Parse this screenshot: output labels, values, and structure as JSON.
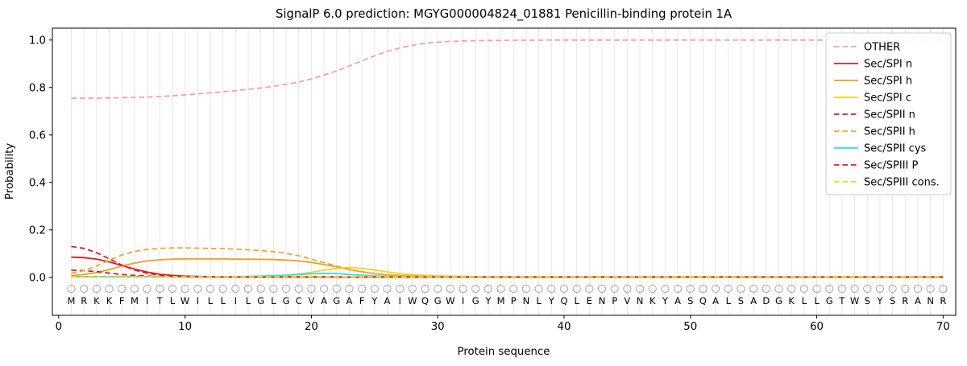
{
  "chart_data": {
    "type": "line",
    "title": "SignalP 6.0 prediction: MGYG000004824_01881 Penicillin-binding protein 1A",
    "xlabel": "Protein sequence",
    "ylabel": "Probability",
    "xticks": [
      0,
      10,
      20,
      30,
      40,
      50,
      60,
      70
    ],
    "yticks": [
      0.0,
      0.2,
      0.4,
      0.6,
      0.8,
      1.0
    ],
    "xlim": [
      -0.5,
      71
    ],
    "ylim": [
      -0.16,
      1.05
    ],
    "grid": "vertical-per-residue",
    "legend_position": "upper right",
    "sequence": "MRKKFMITLWILLILGLGCVAGAFYAIWQGWIGYMPNLYQLENPVNKYASQALSADGKLLGTWSYSRANR",
    "colors": {
      "other": "#ff9e9e",
      "red": "#e41a1c",
      "orange": "#f3a612",
      "yellow": "#f7d117",
      "cyan": "#2fe0e3",
      "grid": "#e7e7e7",
      "marker": "#a6a6a6"
    },
    "series": [
      {
        "name": "OTHER",
        "color": "#ff9e9e",
        "dash": true,
        "values": [
          0.755,
          0.755,
          0.755,
          0.756,
          0.757,
          0.758,
          0.76,
          0.762,
          0.765,
          0.769,
          0.773,
          0.777,
          0.782,
          0.787,
          0.792,
          0.798,
          0.805,
          0.813,
          0.823,
          0.836,
          0.852,
          0.87,
          0.89,
          0.912,
          0.933,
          0.952,
          0.967,
          0.978,
          0.986,
          0.991,
          0.994,
          0.996,
          0.997,
          0.998,
          0.998,
          0.999,
          0.999,
          0.999,
          1.0,
          1.0,
          1.0,
          1.0,
          1.0,
          1.0,
          1.0,
          1.0,
          1.0,
          1.0,
          1.0,
          1.0,
          1.0,
          1.0,
          1.0,
          1.0,
          1.0,
          1.0,
          1.0,
          1.0,
          1.0,
          1.0,
          1.0,
          1.0,
          1.0,
          1.0,
          1.0,
          1.0,
          1.0,
          1.0,
          1.0,
          1.0
        ]
      },
      {
        "name": "Sec/SPI n",
        "color": "#e41a1c",
        "dash": false,
        "values": [
          0.085,
          0.083,
          0.077,
          0.065,
          0.05,
          0.035,
          0.022,
          0.013,
          0.008,
          0.005,
          0.004,
          0.003,
          0.003,
          0.002,
          0.002,
          0.002,
          0.002,
          0.002,
          0.002,
          0.002,
          0.002,
          0.002,
          0.001,
          0.001,
          0.001,
          0.001,
          0.001,
          0.001,
          0.001,
          0.001,
          0.001,
          0.001,
          0.001,
          0.001,
          0.001,
          0.001,
          0.001,
          0.001,
          0.001,
          0.001,
          0.001,
          0.001,
          0.001,
          0.001,
          0.001,
          0.001,
          0.001,
          0.001,
          0.001,
          0.001,
          0.001,
          0.001,
          0.001,
          0.001,
          0.001,
          0.001,
          0.001,
          0.001,
          0.001,
          0.001,
          0.001,
          0.001,
          0.001,
          0.001,
          0.001,
          0.001,
          0.001,
          0.001,
          0.001,
          0.001
        ]
      },
      {
        "name": "Sec/SPI h",
        "color": "#eda020",
        "dash": false,
        "values": [
          0.008,
          0.012,
          0.02,
          0.033,
          0.048,
          0.06,
          0.069,
          0.074,
          0.077,
          0.078,
          0.078,
          0.078,
          0.078,
          0.077,
          0.077,
          0.076,
          0.075,
          0.073,
          0.069,
          0.063,
          0.054,
          0.044,
          0.033,
          0.023,
          0.015,
          0.01,
          0.007,
          0.005,
          0.004,
          0.003,
          0.003,
          0.003,
          0.002,
          0.002,
          0.002,
          0.002,
          0.002,
          0.002,
          0.002,
          0.002,
          0.002,
          0.002,
          0.002,
          0.002,
          0.002,
          0.002,
          0.002,
          0.002,
          0.002,
          0.002,
          0.002,
          0.002,
          0.002,
          0.002,
          0.002,
          0.002,
          0.002,
          0.002,
          0.002,
          0.002,
          0.002,
          0.002,
          0.002,
          0.002,
          0.002,
          0.002,
          0.002,
          0.002,
          0.002,
          0.002
        ]
      },
      {
        "name": "Sec/SPI c",
        "color": "#f7d117",
        "dash": false,
        "values": [
          0.002,
          0.002,
          0.002,
          0.002,
          0.002,
          0.002,
          0.002,
          0.002,
          0.002,
          0.002,
          0.002,
          0.002,
          0.002,
          0.003,
          0.003,
          0.004,
          0.006,
          0.009,
          0.014,
          0.021,
          0.03,
          0.038,
          0.041,
          0.038,
          0.031,
          0.023,
          0.016,
          0.011,
          0.008,
          0.006,
          0.005,
          0.004,
          0.003,
          0.003,
          0.003,
          0.003,
          0.003,
          0.003,
          0.003,
          0.003,
          0.003,
          0.003,
          0.003,
          0.003,
          0.003,
          0.003,
          0.003,
          0.003,
          0.003,
          0.003,
          0.003,
          0.003,
          0.003,
          0.003,
          0.003,
          0.003,
          0.003,
          0.003,
          0.003,
          0.003,
          0.003,
          0.003,
          0.003,
          0.003,
          0.003,
          0.003,
          0.003,
          0.003,
          0.003,
          0.003
        ]
      },
      {
        "name": "Sec/SPII n",
        "color": "#e41a1c",
        "dash": true,
        "values": [
          0.03,
          0.028,
          0.024,
          0.018,
          0.012,
          0.008,
          0.005,
          0.003,
          0.002,
          0.002,
          0.001,
          0.001,
          0.001,
          0.001,
          0.001,
          0.001,
          0.001,
          0.001,
          0.001,
          0.001,
          0.001,
          0.001,
          0.001,
          0.001,
          0.001,
          0.001,
          0.001,
          0.001,
          0.001,
          0.001,
          0.001,
          0.001,
          0.001,
          0.001,
          0.001,
          0.001,
          0.001,
          0.001,
          0.001,
          0.001,
          0.001,
          0.001,
          0.001,
          0.001,
          0.001,
          0.001,
          0.001,
          0.001,
          0.001,
          0.001,
          0.001,
          0.001,
          0.001,
          0.001,
          0.001,
          0.001,
          0.001,
          0.001,
          0.001,
          0.001,
          0.001,
          0.001,
          0.001,
          0.001,
          0.001,
          0.001,
          0.001,
          0.001,
          0.001,
          0.001
        ]
      },
      {
        "name": "Sec/SPII h",
        "color": "#f5a623",
        "dash": true,
        "values": [
          0.018,
          0.028,
          0.048,
          0.072,
          0.094,
          0.109,
          0.118,
          0.122,
          0.124,
          0.124,
          0.123,
          0.122,
          0.121,
          0.119,
          0.116,
          0.113,
          0.108,
          0.101,
          0.091,
          0.077,
          0.062,
          0.047,
          0.034,
          0.024,
          0.016,
          0.011,
          0.008,
          0.006,
          0.005,
          0.004,
          0.004,
          0.004,
          0.003,
          0.003,
          0.003,
          0.003,
          0.003,
          0.003,
          0.003,
          0.003,
          0.003,
          0.003,
          0.003,
          0.003,
          0.003,
          0.003,
          0.003,
          0.003,
          0.003,
          0.003,
          0.003,
          0.003,
          0.003,
          0.003,
          0.003,
          0.003,
          0.003,
          0.003,
          0.003,
          0.003,
          0.003,
          0.003,
          0.003,
          0.003,
          0.003,
          0.003,
          0.003,
          0.003,
          0.003,
          0.003
        ]
      },
      {
        "name": "Sec/SPII cys",
        "color": "#2fe0e3",
        "dash": false,
        "values": [
          0.003,
          0.003,
          0.003,
          0.003,
          0.003,
          0.003,
          0.003,
          0.003,
          0.003,
          0.003,
          0.003,
          0.003,
          0.003,
          0.003,
          0.004,
          0.005,
          0.007,
          0.009,
          0.012,
          0.015,
          0.017,
          0.016,
          0.012,
          0.009,
          0.006,
          0.004,
          0.003,
          0.003,
          0.002,
          0.002,
          0.002,
          0.002,
          0.002,
          0.002,
          0.002,
          0.002,
          0.002,
          0.002,
          0.002,
          0.002,
          0.002,
          0.002,
          0.002,
          0.002,
          0.002,
          0.002,
          0.002,
          0.002,
          0.002,
          0.002,
          0.002,
          0.002,
          0.002,
          0.002,
          0.002,
          0.002,
          0.002,
          0.002,
          0.002,
          0.002,
          0.002,
          0.002,
          0.002,
          0.002,
          0.002,
          0.002,
          0.002,
          0.002,
          0.002,
          0.002
        ]
      },
      {
        "name": "Sec/SPIII P",
        "color": "#e41a1c",
        "dash": true,
        "values": [
          0.13,
          0.122,
          0.104,
          0.078,
          0.052,
          0.031,
          0.017,
          0.009,
          0.005,
          0.003,
          0.002,
          0.002,
          0.001,
          0.001,
          0.001,
          0.001,
          0.001,
          0.001,
          0.001,
          0.001,
          0.001,
          0.001,
          0.001,
          0.001,
          0.001,
          0.001,
          0.001,
          0.001,
          0.001,
          0.001,
          0.001,
          0.001,
          0.001,
          0.001,
          0.001,
          0.001,
          0.001,
          0.001,
          0.001,
          0.001,
          0.001,
          0.001,
          0.001,
          0.001,
          0.001,
          0.001,
          0.001,
          0.001,
          0.001,
          0.001,
          0.001,
          0.001,
          0.001,
          0.001,
          0.001,
          0.001,
          0.001,
          0.001,
          0.001,
          0.001,
          0.001,
          0.001,
          0.001,
          0.001,
          0.001,
          0.001,
          0.001,
          0.001,
          0.001,
          0.001
        ]
      },
      {
        "name": "Sec/SPIII cons.",
        "color": "#f7d117",
        "dash": true,
        "values": [
          0.002,
          0.002,
          0.002,
          0.002,
          0.002,
          0.002,
          0.002,
          0.002,
          0.002,
          0.002,
          0.002,
          0.002,
          0.002,
          0.002,
          0.002,
          0.002,
          0.002,
          0.002,
          0.002,
          0.002,
          0.002,
          0.002,
          0.002,
          0.002,
          0.002,
          0.002,
          0.002,
          0.002,
          0.002,
          0.002,
          0.002,
          0.002,
          0.002,
          0.002,
          0.002,
          0.002,
          0.002,
          0.002,
          0.002,
          0.002,
          0.002,
          0.002,
          0.002,
          0.002,
          0.002,
          0.002,
          0.002,
          0.002,
          0.002,
          0.002,
          0.002,
          0.002,
          0.002,
          0.002,
          0.002,
          0.002,
          0.002,
          0.002,
          0.002,
          0.002,
          0.002,
          0.002,
          0.002,
          0.002,
          0.002,
          0.002,
          0.002,
          0.002,
          0.002,
          0.002
        ]
      }
    ]
  }
}
